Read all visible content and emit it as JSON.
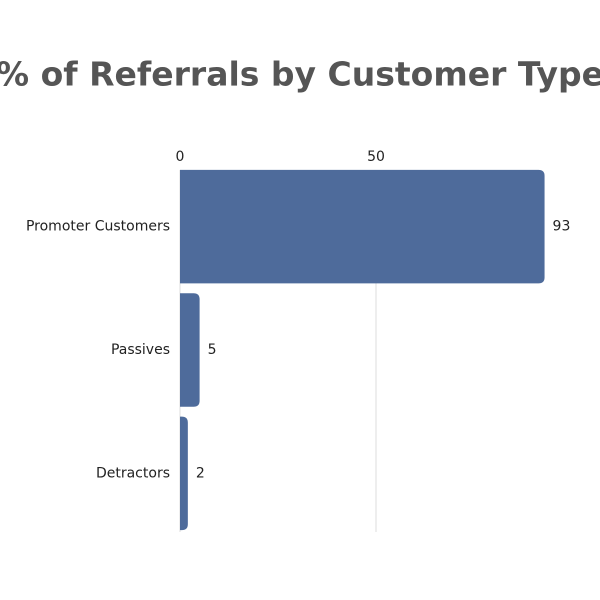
{
  "chart_data": {
    "type": "bar",
    "orientation": "horizontal",
    "title": "% of Referrals by Customer Type",
    "categories": [
      "Promoter Customers",
      "Passives",
      "Detractors"
    ],
    "values": [
      93,
      5,
      2
    ],
    "color": "#4e6b9b",
    "xlim": [
      0,
      100
    ],
    "xticks": [
      0,
      50
    ],
    "grid": true
  }
}
